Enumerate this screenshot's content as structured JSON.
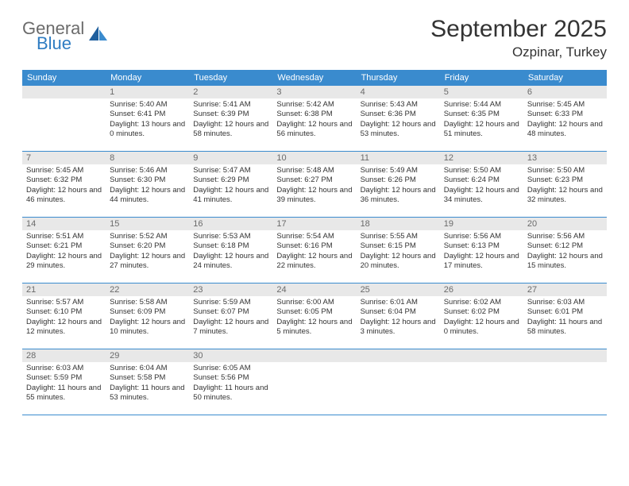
{
  "logo": {
    "word1": "General",
    "word2": "Blue"
  },
  "title": "September 2025",
  "subtitle": "Ozpinar, Turkey",
  "day_headers": [
    "Sunday",
    "Monday",
    "Tuesday",
    "Wednesday",
    "Thursday",
    "Friday",
    "Saturday"
  ],
  "colors": {
    "header_bg": "#3a8bce",
    "header_text": "#ffffff",
    "daynum_bg": "#e8e8e8",
    "daynum_text": "#6a6a6a",
    "rule": "#3a8bce",
    "logo_gray": "#6b6b6b",
    "logo_blue": "#2e7cc2"
  },
  "weeks": [
    [
      {
        "n": "",
        "sunrise": "",
        "sunset": "",
        "daylight": ""
      },
      {
        "n": "1",
        "sunrise": "Sunrise: 5:40 AM",
        "sunset": "Sunset: 6:41 PM",
        "daylight": "Daylight: 13 hours and 0 minutes."
      },
      {
        "n": "2",
        "sunrise": "Sunrise: 5:41 AM",
        "sunset": "Sunset: 6:39 PM",
        "daylight": "Daylight: 12 hours and 58 minutes."
      },
      {
        "n": "3",
        "sunrise": "Sunrise: 5:42 AM",
        "sunset": "Sunset: 6:38 PM",
        "daylight": "Daylight: 12 hours and 56 minutes."
      },
      {
        "n": "4",
        "sunrise": "Sunrise: 5:43 AM",
        "sunset": "Sunset: 6:36 PM",
        "daylight": "Daylight: 12 hours and 53 minutes."
      },
      {
        "n": "5",
        "sunrise": "Sunrise: 5:44 AM",
        "sunset": "Sunset: 6:35 PM",
        "daylight": "Daylight: 12 hours and 51 minutes."
      },
      {
        "n": "6",
        "sunrise": "Sunrise: 5:45 AM",
        "sunset": "Sunset: 6:33 PM",
        "daylight": "Daylight: 12 hours and 48 minutes."
      }
    ],
    [
      {
        "n": "7",
        "sunrise": "Sunrise: 5:45 AM",
        "sunset": "Sunset: 6:32 PM",
        "daylight": "Daylight: 12 hours and 46 minutes."
      },
      {
        "n": "8",
        "sunrise": "Sunrise: 5:46 AM",
        "sunset": "Sunset: 6:30 PM",
        "daylight": "Daylight: 12 hours and 44 minutes."
      },
      {
        "n": "9",
        "sunrise": "Sunrise: 5:47 AM",
        "sunset": "Sunset: 6:29 PM",
        "daylight": "Daylight: 12 hours and 41 minutes."
      },
      {
        "n": "10",
        "sunrise": "Sunrise: 5:48 AM",
        "sunset": "Sunset: 6:27 PM",
        "daylight": "Daylight: 12 hours and 39 minutes."
      },
      {
        "n": "11",
        "sunrise": "Sunrise: 5:49 AM",
        "sunset": "Sunset: 6:26 PM",
        "daylight": "Daylight: 12 hours and 36 minutes."
      },
      {
        "n": "12",
        "sunrise": "Sunrise: 5:50 AM",
        "sunset": "Sunset: 6:24 PM",
        "daylight": "Daylight: 12 hours and 34 minutes."
      },
      {
        "n": "13",
        "sunrise": "Sunrise: 5:50 AM",
        "sunset": "Sunset: 6:23 PM",
        "daylight": "Daylight: 12 hours and 32 minutes."
      }
    ],
    [
      {
        "n": "14",
        "sunrise": "Sunrise: 5:51 AM",
        "sunset": "Sunset: 6:21 PM",
        "daylight": "Daylight: 12 hours and 29 minutes."
      },
      {
        "n": "15",
        "sunrise": "Sunrise: 5:52 AM",
        "sunset": "Sunset: 6:20 PM",
        "daylight": "Daylight: 12 hours and 27 minutes."
      },
      {
        "n": "16",
        "sunrise": "Sunrise: 5:53 AM",
        "sunset": "Sunset: 6:18 PM",
        "daylight": "Daylight: 12 hours and 24 minutes."
      },
      {
        "n": "17",
        "sunrise": "Sunrise: 5:54 AM",
        "sunset": "Sunset: 6:16 PM",
        "daylight": "Daylight: 12 hours and 22 minutes."
      },
      {
        "n": "18",
        "sunrise": "Sunrise: 5:55 AM",
        "sunset": "Sunset: 6:15 PM",
        "daylight": "Daylight: 12 hours and 20 minutes."
      },
      {
        "n": "19",
        "sunrise": "Sunrise: 5:56 AM",
        "sunset": "Sunset: 6:13 PM",
        "daylight": "Daylight: 12 hours and 17 minutes."
      },
      {
        "n": "20",
        "sunrise": "Sunrise: 5:56 AM",
        "sunset": "Sunset: 6:12 PM",
        "daylight": "Daylight: 12 hours and 15 minutes."
      }
    ],
    [
      {
        "n": "21",
        "sunrise": "Sunrise: 5:57 AM",
        "sunset": "Sunset: 6:10 PM",
        "daylight": "Daylight: 12 hours and 12 minutes."
      },
      {
        "n": "22",
        "sunrise": "Sunrise: 5:58 AM",
        "sunset": "Sunset: 6:09 PM",
        "daylight": "Daylight: 12 hours and 10 minutes."
      },
      {
        "n": "23",
        "sunrise": "Sunrise: 5:59 AM",
        "sunset": "Sunset: 6:07 PM",
        "daylight": "Daylight: 12 hours and 7 minutes."
      },
      {
        "n": "24",
        "sunrise": "Sunrise: 6:00 AM",
        "sunset": "Sunset: 6:05 PM",
        "daylight": "Daylight: 12 hours and 5 minutes."
      },
      {
        "n": "25",
        "sunrise": "Sunrise: 6:01 AM",
        "sunset": "Sunset: 6:04 PM",
        "daylight": "Daylight: 12 hours and 3 minutes."
      },
      {
        "n": "26",
        "sunrise": "Sunrise: 6:02 AM",
        "sunset": "Sunset: 6:02 PM",
        "daylight": "Daylight: 12 hours and 0 minutes."
      },
      {
        "n": "27",
        "sunrise": "Sunrise: 6:03 AM",
        "sunset": "Sunset: 6:01 PM",
        "daylight": "Daylight: 11 hours and 58 minutes."
      }
    ],
    [
      {
        "n": "28",
        "sunrise": "Sunrise: 6:03 AM",
        "sunset": "Sunset: 5:59 PM",
        "daylight": "Daylight: 11 hours and 55 minutes."
      },
      {
        "n": "29",
        "sunrise": "Sunrise: 6:04 AM",
        "sunset": "Sunset: 5:58 PM",
        "daylight": "Daylight: 11 hours and 53 minutes."
      },
      {
        "n": "30",
        "sunrise": "Sunrise: 6:05 AM",
        "sunset": "Sunset: 5:56 PM",
        "daylight": "Daylight: 11 hours and 50 minutes."
      },
      {
        "n": "",
        "sunrise": "",
        "sunset": "",
        "daylight": ""
      },
      {
        "n": "",
        "sunrise": "",
        "sunset": "",
        "daylight": ""
      },
      {
        "n": "",
        "sunrise": "",
        "sunset": "",
        "daylight": ""
      },
      {
        "n": "",
        "sunrise": "",
        "sunset": "",
        "daylight": ""
      }
    ]
  ]
}
